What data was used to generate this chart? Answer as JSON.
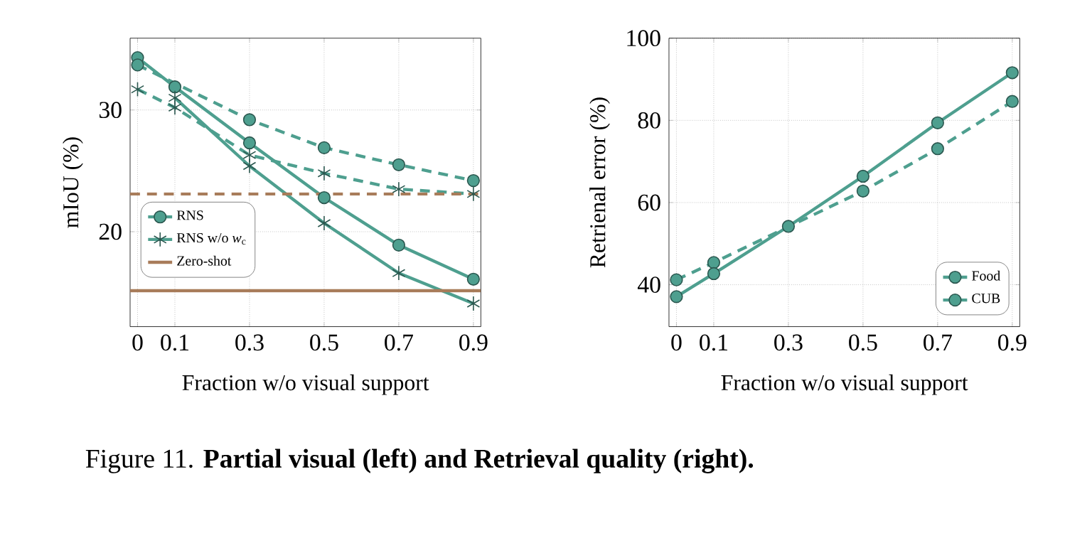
{
  "chart_data": [
    {
      "type": "line",
      "xlabel": "Fraction w/o visual support",
      "ylabel": "mIoU (%)",
      "x": [
        0,
        0.1,
        0.3,
        0.5,
        0.7,
        0.9
      ],
      "xlim": [
        -0.02,
        0.92
      ],
      "ylim": [
        12.2,
        35.9
      ],
      "xticks": [
        0,
        0.1,
        0.3,
        0.5,
        0.7,
        0.9
      ],
      "yticks": [
        20,
        30
      ],
      "grid": true,
      "legend": "bottom left",
      "series": [
        {
          "name": "RNS",
          "color": "#4e9f8f",
          "marker": "circle",
          "line_style": "solid",
          "values": [
            34.3,
            31.9,
            27.3,
            22.8,
            18.9,
            16.1
          ]
        },
        {
          "name": "RNS w/o *w*$_{c}$",
          "color": "#4e9f8f",
          "marker": "cross",
          "line_style": "solid",
          "values": [
            null,
            31.0,
            25.4,
            20.7,
            16.6,
            14.1
          ]
        },
        {
          "color": "#4e9f8f",
          "marker": "circle",
          "line_style": "dashed",
          "values": [
            33.7,
            null,
            29.2,
            26.9,
            25.5,
            24.2
          ]
        },
        {
          "color": "#4e9f8f",
          "marker": "cross",
          "line_style": "dashed",
          "values": [
            31.7,
            30.2,
            26.3,
            24.8,
            23.5,
            23.1
          ]
        }
      ],
      "ref_lines": [
        {
          "axis": "y",
          "value": 23.1,
          "color": "#a87c5a",
          "line_style": "dashed"
        },
        {
          "axis": "y",
          "value": 15.15,
          "label": "Zero-shot",
          "color": "#a87c5a",
          "line_style": "solid"
        }
      ],
      "annotations": [
        "Figure 11. **Partial visual (left) and Retrieval quality (right).**"
      ]
    },
    {
      "type": "line",
      "xlabel": "Fraction w/o visual support",
      "ylabel": "Retrienal error (%)",
      "x": [
        0,
        0.1,
        0.3,
        0.5,
        0.7,
        0.9
      ],
      "xlim": [
        -0.02,
        0.92
      ],
      "ylim": [
        29.8,
        100
      ],
      "xticks": [
        0,
        0.1,
        0.3,
        0.5,
        0.7,
        0.9
      ],
      "yticks": [
        40,
        60,
        80,
        100
      ],
      "grid": true,
      "legend": "bottom right",
      "marker": "circle",
      "series": [
        {
          "name": "Food",
          "color": "#4e9f8f",
          "line_style": "dashed",
          "values": [
            41.2,
            45.4,
            null,
            62.8,
            73.1,
            84.6
          ]
        },
        {
          "name": "CUB",
          "color": "#4e9f8f",
          "line_style": "solid",
          "values": [
            37.1,
            42.7,
            54.2,
            66.4,
            79.4,
            91.6
          ]
        }
      ]
    }
  ]
}
